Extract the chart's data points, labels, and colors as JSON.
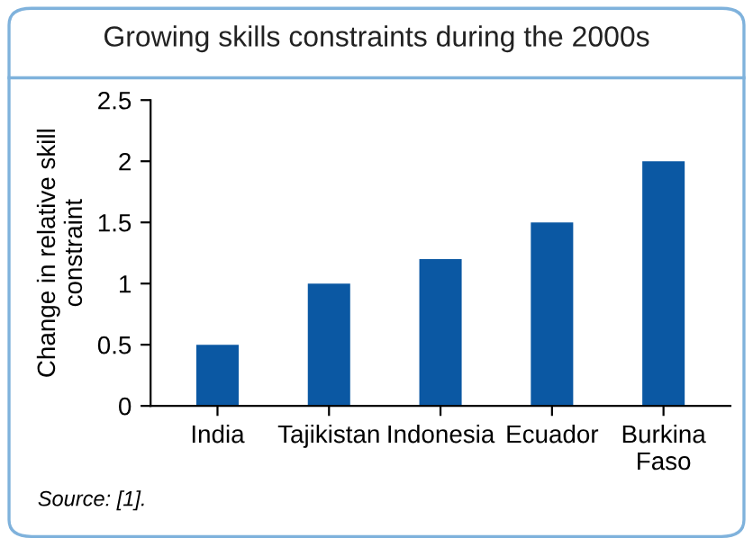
{
  "chart_data": {
    "type": "bar",
    "title": "Growing skills constraints during the 2000s",
    "ylabel": "Change in relative skill\nconstraint",
    "categories": [
      "India",
      "Tajikistan",
      "Indonesia",
      "Ecuador",
      "Burkina\nFaso"
    ],
    "values": [
      0.5,
      1.0,
      1.2,
      1.5,
      2.0
    ],
    "color": "#0b58a3",
    "ylim": [
      0,
      2.5
    ],
    "yticks": [
      0,
      0.5,
      1,
      1.5,
      2,
      2.5
    ],
    "grid": false,
    "annotations": [
      "Source: [1]."
    ]
  }
}
